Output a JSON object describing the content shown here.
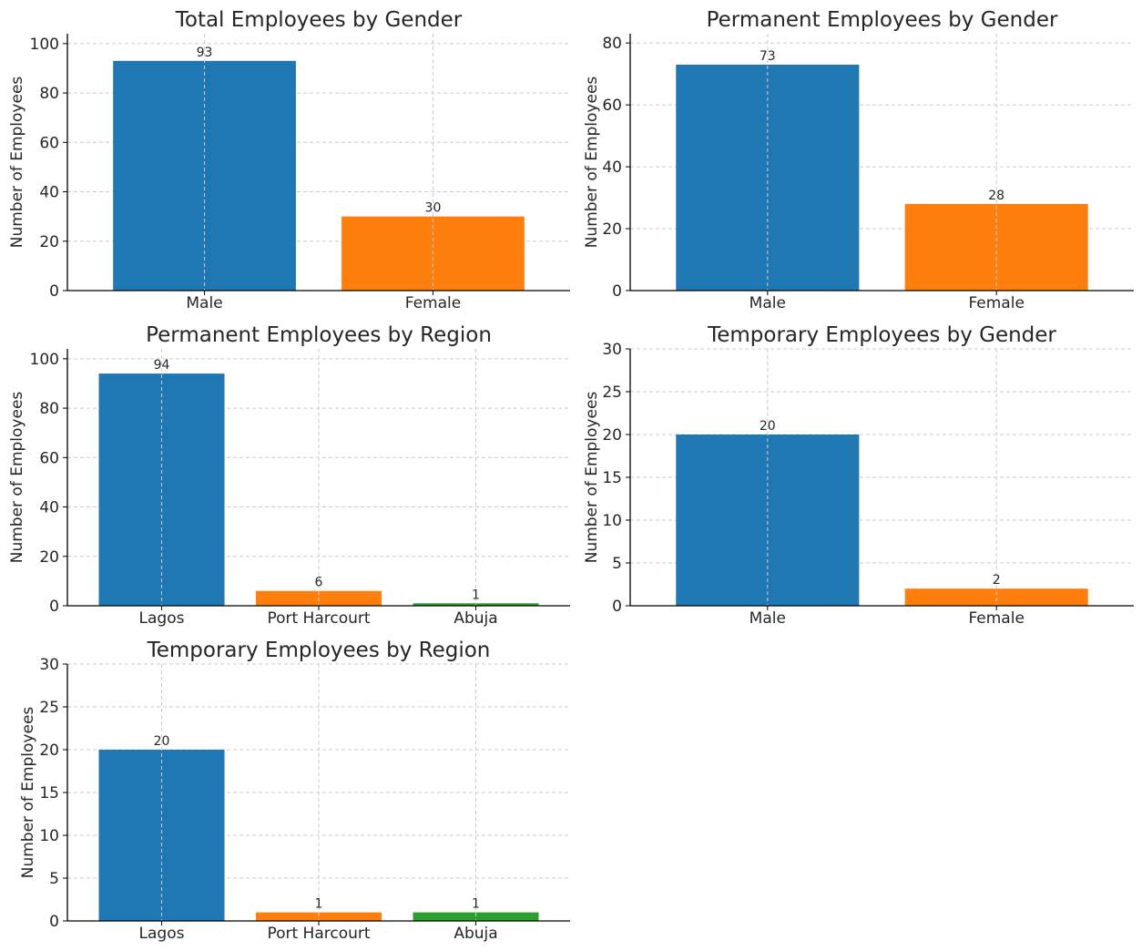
{
  "chart_data": [
    {
      "type": "bar",
      "title": "Total Employees by Gender",
      "xlabel": "",
      "ylabel": "Number of Employees",
      "categories": [
        "Male",
        "Female"
      ],
      "values": [
        93,
        30
      ],
      "data_labels": [
        "93",
        "30"
      ],
      "colors": [
        "#1f77b4",
        "#ff7f0e"
      ],
      "ylim": [
        0,
        104
      ],
      "yticks": [
        0,
        20,
        40,
        60,
        80,
        100
      ],
      "grid": true
    },
    {
      "type": "bar",
      "title": "Permanent Employees by Gender",
      "xlabel": "",
      "ylabel": "Number of Employees",
      "categories": [
        "Male",
        "Female"
      ],
      "values": [
        73,
        28
      ],
      "data_labels": [
        "73",
        "28"
      ],
      "colors": [
        "#1f77b4",
        "#ff7f0e"
      ],
      "ylim": [
        0,
        83
      ],
      "yticks": [
        0,
        20,
        40,
        60,
        80
      ],
      "grid": true
    },
    {
      "type": "bar",
      "title": "Permanent Employees by Region",
      "xlabel": "",
      "ylabel": "Number of Employees",
      "categories": [
        "Lagos",
        "Port Harcourt",
        "Abuja"
      ],
      "values": [
        94,
        6,
        1
      ],
      "data_labels": [
        "94",
        "6",
        "1"
      ],
      "colors": [
        "#1f77b4",
        "#ff7f0e",
        "#2ca02c"
      ],
      "ylim": [
        0,
        104
      ],
      "yticks": [
        0,
        20,
        40,
        60,
        80,
        100
      ],
      "grid": true
    },
    {
      "type": "bar",
      "title": "Temporary Employees by Gender",
      "xlabel": "",
      "ylabel": "Number of Employees",
      "categories": [
        "Male",
        "Female"
      ],
      "values": [
        20,
        2
      ],
      "data_labels": [
        "20",
        "2"
      ],
      "colors": [
        "#1f77b4",
        "#ff7f0e"
      ],
      "ylim": [
        0,
        30
      ],
      "yticks": [
        0,
        5,
        10,
        15,
        20,
        25,
        30
      ],
      "grid": true
    },
    {
      "type": "bar",
      "title": "Temporary Employees by Region",
      "xlabel": "",
      "ylabel": "Number of Employees",
      "categories": [
        "Lagos",
        "Port Harcourt",
        "Abuja"
      ],
      "values": [
        20,
        1,
        1
      ],
      "data_labels": [
        "20",
        "1",
        "1"
      ],
      "colors": [
        "#1f77b4",
        "#ff7f0e",
        "#2ca02c"
      ],
      "ylim": [
        0,
        30
      ],
      "yticks": [
        0,
        5,
        10,
        15,
        20,
        25,
        30
      ],
      "grid": true
    }
  ]
}
